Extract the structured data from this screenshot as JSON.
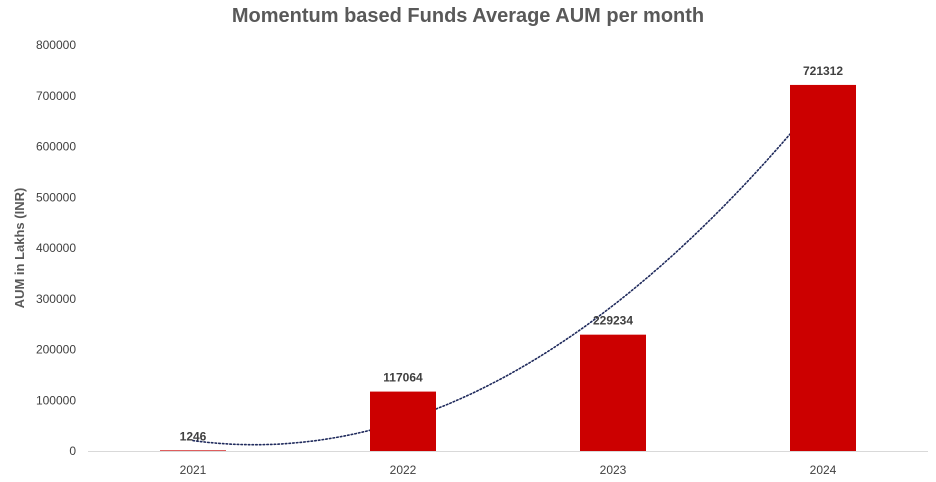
{
  "chart_data": {
    "type": "bar",
    "title": "Momentum based Funds Average AUM per month",
    "xlabel": "",
    "ylabel": "AUM in Lakhs (INR)",
    "categories": [
      "2021",
      "2022",
      "2023",
      "2024"
    ],
    "values": [
      1246,
      117064,
      229234,
      721312
    ],
    "ylim": [
      0,
      800000
    ],
    "yticks": [
      "0",
      "100000",
      "200000",
      "300000",
      "400000",
      "500000",
      "600000",
      "700000",
      "800000"
    ],
    "grid": false,
    "legend": "none",
    "data_labels": [
      "1246",
      "117064",
      "229234",
      "721312"
    ],
    "trendline": {
      "type": "polynomial",
      "style": "dotted"
    },
    "colors": {
      "bar": "#CC0000",
      "trendline": "#1F2A5C",
      "axis": "#D9D9D9"
    }
  }
}
